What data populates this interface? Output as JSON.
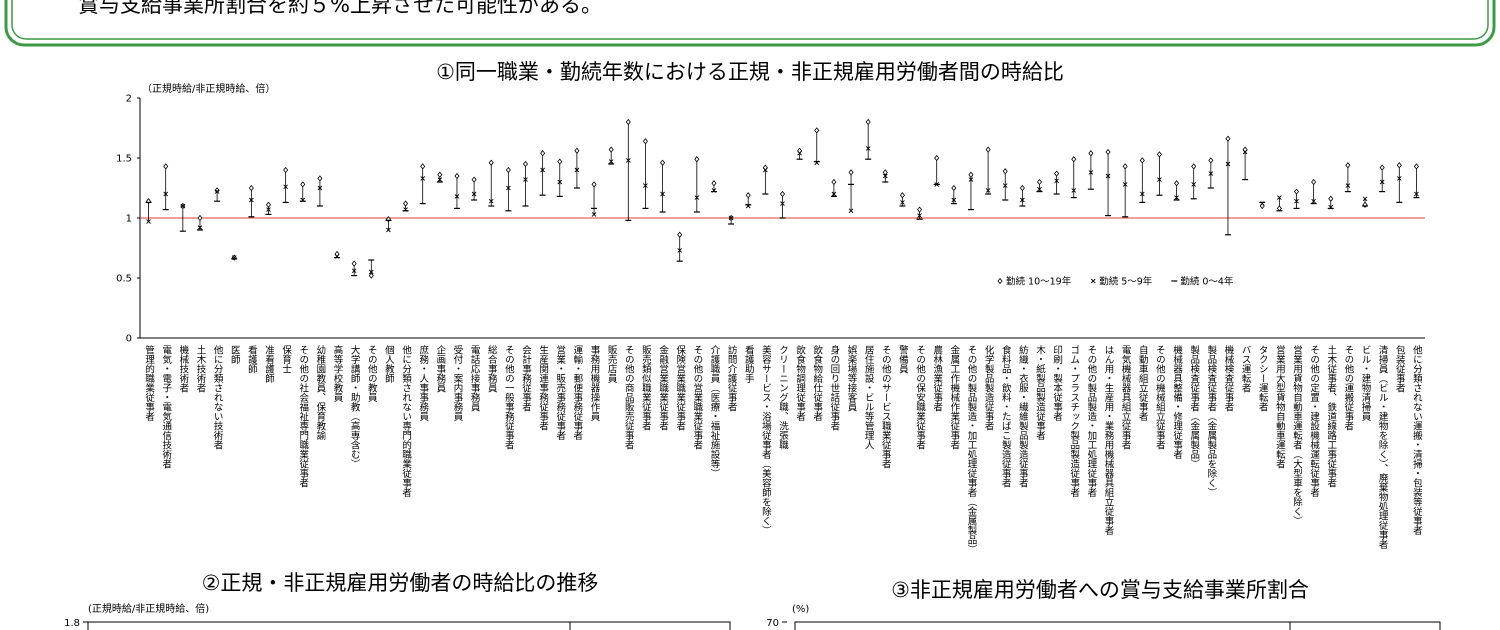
{
  "banner": "賞与支給事業所割合を約５%上昇させた可能性がある。",
  "chart_data": [
    {
      "type": "range-markers",
      "title": "①同一職業・勤続年数における正規・非正規雇用労働者間の時給比",
      "y_label": "（正規時給/非正規時給、倍）",
      "ylim": [
        0,
        2
      ],
      "yticks": [
        0,
        0.5,
        1,
        1.5,
        2
      ],
      "grid": false,
      "reference_line": {
        "value": 1,
        "color": "#e03c3c"
      },
      "categories": [
        "管理的職業従事者",
        "電気・電子・電気通信技術者",
        "機械技術者",
        "土木技術者",
        "他に分類されない技術者",
        "医師",
        "看護師",
        "准看護師",
        "保育士",
        "その他の社会福祉専門職業従事者",
        "幼稚園教員、保育教諭",
        "高等学校教員",
        "大学講師・助教（高専含む）",
        "その他の教員",
        "個人教師",
        "他に分類されない専門的職業従事者",
        "庶務・人事事務員",
        "企画事務員",
        "受付・案内事務員",
        "電話応接事務員",
        "総合事務員",
        "その他の一般事務従事者",
        "会計事務従事者",
        "生産関連事務従事者",
        "営業・販売事務従事者",
        "運輸・郵便事務従事者",
        "事務用機器操作員",
        "販売店員",
        "その他の商品販売従事者",
        "販売類似職業従事者",
        "金融営業職業従事者",
        "保険営業職業従事者",
        "その他の営業職業従事者",
        "介護職員（医療・福祉施設等）",
        "訪問介護従事者",
        "看護助手",
        "美容サービス・浴場従事者（美容師を除く）",
        "クリーニング職、洗張職",
        "飲食物調理従事者",
        "飲食物給仕従事者",
        "身の回り世話従事者",
        "娯楽場等接客員",
        "居住施設・ビル等管理人",
        "その他のサービス職業従事者",
        "警備員",
        "その他の保安職業従事者",
        "農林漁業従事者",
        "金属工作機械作業従事者",
        "その他の製品製造・加工処理従事者（金属製品）",
        "化学製品製造従事者",
        "食料品・飲料・たばこ製造従事者",
        "紡織・衣服・繊維製品製造従事者",
        "木・紙製品製造従事者",
        "印刷・製本従事者",
        "ゴム・プラスチック製品製造従事者",
        "その他の製品製造・加工処理従事者",
        "はん用・生産用・業務用機械器具組立従事者",
        "電気機械器具組立従事者",
        "自動車組立従事者",
        "その他の機械組立従事者",
        "機械器具整備・修理従事者",
        "製品検査従事者（金属製品）",
        "製品検査従事者（金属製品を除く）",
        "機械検査従事者",
        "バス運転者",
        "タクシー運転者",
        "営業用大型貨物自動車運転者",
        "営業用貨物自動車運転者（大型車を除く）",
        "その他の定置・建設機械運転従事者",
        "土木従事者、鉄道線路工事従事者",
        "その他の運搬従事者",
        "ビル・建物清掃員",
        "清掃員（ビル・建物を除く）、廃棄物処理従事者",
        "包装従事者",
        "他に分類されない運搬・清掃・包装等従事者"
      ],
      "series": [
        {
          "name": "勤続 10～19年",
          "marker": "diamond",
          "color": "#000000",
          "values": [
            1.14,
            1.43,
            1.1,
            1.0,
            1.23,
            0.67,
            1.25,
            1.11,
            1.4,
            1.28,
            1.33,
            0.7,
            0.62,
            0.52,
            0.99,
            1.12,
            1.43,
            1.36,
            1.35,
            1.32,
            1.46,
            1.4,
            1.45,
            1.54,
            1.47,
            1.56,
            1.28,
            1.57,
            1.8,
            1.64,
            1.46,
            0.86,
            1.49,
            1.29,
            1.0,
            1.19,
            1.42,
            1.2,
            1.56,
            1.73,
            1.3,
            1.38,
            1.8,
            1.38,
            1.19,
            1.07,
            1.5,
            1.25,
            1.36,
            1.57,
            1.39,
            1.25,
            1.3,
            1.37,
            1.49,
            1.54,
            1.55,
            1.43,
            1.48,
            1.53,
            1.29,
            1.43,
            1.48,
            1.66,
            1.57,
            1.1,
            1.08,
            1.22,
            1.3,
            1.16,
            1.44,
            1.11,
            1.42,
            1.44,
            1.43
          ]
        },
        {
          "name": "勤続 5～9年",
          "marker": "cross",
          "color": "#000000",
          "values": [
            0.97,
            1.2,
            1.1,
            0.92,
            1.22,
            0.67,
            1.15,
            1.07,
            1.26,
            1.15,
            1.25,
            0.68,
            0.56,
            0.55,
            0.9,
            1.07,
            1.33,
            1.32,
            1.18,
            1.2,
            1.14,
            1.25,
            1.32,
            1.4,
            1.3,
            1.4,
            1.03,
            1.47,
            1.48,
            1.27,
            1.2,
            0.73,
            1.17,
            1.23,
            1.0,
            1.1,
            1.4,
            1.12,
            1.54,
            1.46,
            1.2,
            1.06,
            1.58,
            1.35,
            1.13,
            1.02,
            1.28,
            1.15,
            1.32,
            1.23,
            1.27,
            1.15,
            1.24,
            1.31,
            1.23,
            1.38,
            1.35,
            1.28,
            1.2,
            1.32,
            1.17,
            1.28,
            1.37,
            1.45,
            1.55,
            1.12,
            1.17,
            1.14,
            1.14,
            1.09,
            1.27,
            1.16,
            1.3,
            1.33,
            1.2
          ]
        },
        {
          "name": "勤続 0～4年",
          "marker": "dash",
          "color": "#000000",
          "values": [
            1.13,
            1.07,
            0.89,
            0.9,
            1.14,
            0.66,
            1.01,
            1.03,
            1.13,
            1.14,
            1.1,
            0.67,
            0.52,
            0.65,
            0.98,
            1.06,
            1.12,
            1.3,
            1.08,
            1.15,
            1.1,
            1.06,
            1.1,
            1.19,
            1.18,
            1.25,
            1.08,
            1.45,
            0.98,
            1.08,
            1.05,
            0.64,
            1.05,
            1.22,
            0.95,
            1.11,
            1.2,
            1.0,
            1.49,
            1.47,
            1.18,
            1.28,
            1.49,
            1.3,
            1.1,
            0.99,
            1.28,
            1.12,
            1.07,
            1.2,
            1.15,
            1.1,
            1.22,
            1.2,
            1.17,
            1.24,
            1.02,
            1.01,
            1.13,
            1.19,
            1.15,
            1.16,
            1.25,
            0.86,
            1.32,
            1.13,
            1.06,
            1.08,
            1.12,
            1.08,
            1.22,
            1.1,
            1.22,
            1.13,
            1.17
          ]
        }
      ]
    },
    {
      "type": "line",
      "title": "②正規・非正規雇用労働者の時給比の推移",
      "y_label": "(正規時給/非正規時給、倍)",
      "yticks": [
        1.8
      ]
    },
    {
      "type": "line",
      "title": "③非正規雇用労働者への賞与支給事業所割合",
      "y_label": "(%)",
      "yticks": [
        70
      ]
    }
  ]
}
